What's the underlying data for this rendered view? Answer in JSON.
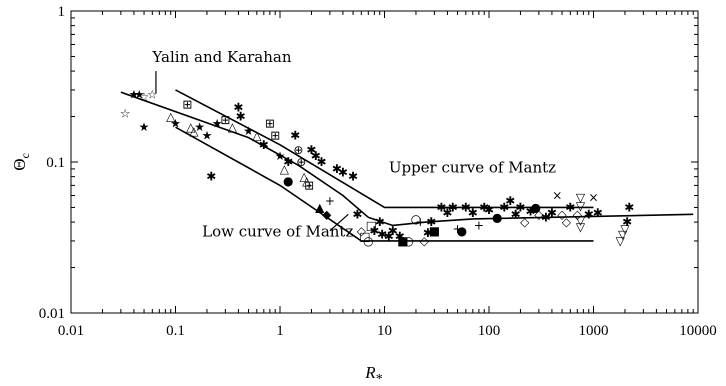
{
  "chart_data": {
    "type": "scatter",
    "title": "",
    "xlabel": "R",
    "xlabel_subscript": "*",
    "ylabel": "Θ",
    "ylabel_subscript": "c",
    "xscale": "log",
    "yscale": "log",
    "xlim": [
      0.01,
      10000
    ],
    "ylim": [
      0.01,
      1
    ],
    "x_ticks": [
      0.01,
      0.1,
      1,
      10,
      100,
      1000,
      10000
    ],
    "x_tick_labels": [
      "0.01",
      "0.1",
      "1",
      "10",
      "100",
      "1000",
      "10000"
    ],
    "y_ticks": [
      0.01,
      0.1,
      1
    ],
    "y_tick_labels": [
      "0.01",
      "0.1",
      "1"
    ],
    "grid": false,
    "lines": [
      {
        "id": "yalin-karahan",
        "x": [
          0.03,
          0.5,
          1.5,
          4,
          7,
          12,
          25,
          70,
          9000
        ],
        "y": [
          0.29,
          0.145,
          0.095,
          0.06,
          0.043,
          0.038,
          0.04,
          0.042,
          0.045
        ]
      },
      {
        "id": "upper-mantz",
        "x": [
          0.1,
          1,
          10,
          1000
        ],
        "y": [
          0.3,
          0.13,
          0.05,
          0.05
        ]
      },
      {
        "id": "low-mantz",
        "x": [
          0.1,
          1,
          6,
          1000
        ],
        "y": [
          0.17,
          0.07,
          0.03,
          0.03
        ]
      }
    ],
    "annotations": [
      {
        "text": "Yalin and Karahan",
        "x": 0.06,
        "y": 0.46,
        "pointer": [
          [
            0.065,
            0.4
          ],
          [
            0.065,
            0.285
          ]
        ]
      },
      {
        "text": "Upper curve of Mantz",
        "x": 11,
        "y": 0.085
      },
      {
        "text": "Low curve of Mantz",
        "x": 0.18,
        "y": 0.032,
        "pointer": [
          [
            3.0,
            0.035
          ],
          [
            4.5,
            0.045
          ]
        ]
      }
    ],
    "points": [
      {
        "x": 0.033,
        "y": 0.21,
        "m": "☆"
      },
      {
        "x": 0.04,
        "y": 0.28,
        "m": "★"
      },
      {
        "x": 0.045,
        "y": 0.28,
        "m": "★"
      },
      {
        "x": 0.05,
        "y": 0.27,
        "m": "☆"
      },
      {
        "x": 0.06,
        "y": 0.28,
        "m": "☆"
      },
      {
        "x": 0.05,
        "y": 0.17,
        "m": "★"
      },
      {
        "x": 0.09,
        "y": 0.2,
        "m": "△"
      },
      {
        "x": 0.1,
        "y": 0.18,
        "m": "★"
      },
      {
        "x": 0.13,
        "y": 0.24,
        "m": "⊞"
      },
      {
        "x": 0.14,
        "y": 0.17,
        "m": "△"
      },
      {
        "x": 0.15,
        "y": 0.16,
        "m": "△"
      },
      {
        "x": 0.17,
        "y": 0.17,
        "m": "★"
      },
      {
        "x": 0.2,
        "y": 0.15,
        "m": "★"
      },
      {
        "x": 0.22,
        "y": 0.08,
        "m": "✱"
      },
      {
        "x": 0.25,
        "y": 0.18,
        "m": "★"
      },
      {
        "x": 0.3,
        "y": 0.19,
        "m": "⊞"
      },
      {
        "x": 0.35,
        "y": 0.17,
        "m": "△"
      },
      {
        "x": 0.4,
        "y": 0.23,
        "m": "✱"
      },
      {
        "x": 0.42,
        "y": 0.2,
        "m": "✱"
      },
      {
        "x": 0.5,
        "y": 0.16,
        "m": "★"
      },
      {
        "x": 0.6,
        "y": 0.15,
        "m": "△"
      },
      {
        "x": 0.7,
        "y": 0.13,
        "m": "✱"
      },
      {
        "x": 0.8,
        "y": 0.18,
        "m": "⊞"
      },
      {
        "x": 0.9,
        "y": 0.15,
        "m": "⊞"
      },
      {
        "x": 1.0,
        "y": 0.11,
        "m": "★"
      },
      {
        "x": 1.1,
        "y": 0.09,
        "m": "△"
      },
      {
        "x": 1.2,
        "y": 0.1,
        "m": "✱"
      },
      {
        "x": 1.4,
        "y": 0.15,
        "m": "✱"
      },
      {
        "x": 1.5,
        "y": 0.12,
        "m": "⊕"
      },
      {
        "x": 1.6,
        "y": 0.1,
        "m": "⊕"
      },
      {
        "x": 1.7,
        "y": 0.08,
        "m": "△"
      },
      {
        "x": 1.8,
        "y": 0.075,
        "m": "△"
      },
      {
        "x": 1.9,
        "y": 0.07,
        "m": "⊞"
      },
      {
        "x": 2.0,
        "y": 0.12,
        "m": "✱"
      },
      {
        "x": 2.2,
        "y": 0.11,
        "m": "✱"
      },
      {
        "x": 2.5,
        "y": 0.1,
        "m": "✱"
      },
      {
        "x": 1.2,
        "y": 0.075,
        "m": "●"
      },
      {
        "x": 2.4,
        "y": 0.05,
        "m": "▲"
      },
      {
        "x": 2.8,
        "y": 0.045,
        "m": "◆"
      },
      {
        "x": 3.0,
        "y": 0.055,
        "m": "+"
      },
      {
        "x": 3.5,
        "y": 0.09,
        "m": "✱"
      },
      {
        "x": 4.0,
        "y": 0.085,
        "m": "✱"
      },
      {
        "x": 5.0,
        "y": 0.08,
        "m": "✱"
      },
      {
        "x": 5.5,
        "y": 0.045,
        "m": "✱"
      },
      {
        "x": 6.0,
        "y": 0.035,
        "m": "◇"
      },
      {
        "x": 6.5,
        "y": 0.032,
        "m": "□"
      },
      {
        "x": 7.0,
        "y": 0.03,
        "m": "○"
      },
      {
        "x": 7.5,
        "y": 0.038,
        "m": "□"
      },
      {
        "x": 8.0,
        "y": 0.035,
        "m": "✱"
      },
      {
        "x": 9.0,
        "y": 0.04,
        "m": "✱"
      },
      {
        "x": 9.5,
        "y": 0.033,
        "m": "✱"
      },
      {
        "x": 11.0,
        "y": 0.032,
        "m": "✱"
      },
      {
        "x": 12.0,
        "y": 0.035,
        "m": "✱"
      },
      {
        "x": 14.0,
        "y": 0.032,
        "m": "✱"
      },
      {
        "x": 15.0,
        "y": 0.03,
        "m": "■"
      },
      {
        "x": 17.0,
        "y": 0.03,
        "m": "○"
      },
      {
        "x": 20.0,
        "y": 0.042,
        "m": "○"
      },
      {
        "x": 22.0,
        "y": 0.04,
        "m": "+"
      },
      {
        "x": 24.0,
        "y": 0.03,
        "m": "◇"
      },
      {
        "x": 26.0,
        "y": 0.034,
        "m": "✱"
      },
      {
        "x": 28.0,
        "y": 0.04,
        "m": "✱"
      },
      {
        "x": 30.0,
        "y": 0.035,
        "m": "■"
      },
      {
        "x": 35.0,
        "y": 0.05,
        "m": "✱"
      },
      {
        "x": 40.0,
        "y": 0.046,
        "m": "✱"
      },
      {
        "x": 45.0,
        "y": 0.05,
        "m": "✱"
      },
      {
        "x": 50.0,
        "y": 0.036,
        "m": "+"
      },
      {
        "x": 55.0,
        "y": 0.035,
        "m": "●"
      },
      {
        "x": 60.0,
        "y": 0.05,
        "m": "✱"
      },
      {
        "x": 70.0,
        "y": 0.046,
        "m": "✱"
      },
      {
        "x": 80.0,
        "y": 0.038,
        "m": "+"
      },
      {
        "x": 90.0,
        "y": 0.05,
        "m": "✱"
      },
      {
        "x": 100.0,
        "y": 0.048,
        "m": "✱"
      },
      {
        "x": 120.0,
        "y": 0.043,
        "m": "●"
      },
      {
        "x": 140.0,
        "y": 0.05,
        "m": "✱"
      },
      {
        "x": 160.0,
        "y": 0.055,
        "m": "✱"
      },
      {
        "x": 180.0,
        "y": 0.045,
        "m": "✱"
      },
      {
        "x": 200.0,
        "y": 0.05,
        "m": "✱"
      },
      {
        "x": 220.0,
        "y": 0.04,
        "m": "◇"
      },
      {
        "x": 250.0,
        "y": 0.047,
        "m": "✱"
      },
      {
        "x": 280.0,
        "y": 0.05,
        "m": "●"
      },
      {
        "x": 300.0,
        "y": 0.045,
        "m": "◇"
      },
      {
        "x": 350.0,
        "y": 0.043,
        "m": "✱"
      },
      {
        "x": 400.0,
        "y": 0.046,
        "m": "✱"
      },
      {
        "x": 450.0,
        "y": 0.06,
        "m": "×"
      },
      {
        "x": 500.0,
        "y": 0.045,
        "m": "◇"
      },
      {
        "x": 550.0,
        "y": 0.04,
        "m": "◇"
      },
      {
        "x": 600.0,
        "y": 0.05,
        "m": "✱"
      },
      {
        "x": 700.0,
        "y": 0.045,
        "m": "◇"
      },
      {
        "x": 750.0,
        "y": 0.058,
        "m": "▽"
      },
      {
        "x": 750.0,
        "y": 0.051,
        "m": "▽"
      },
      {
        "x": 750.0,
        "y": 0.041,
        "m": "▽"
      },
      {
        "x": 750.0,
        "y": 0.037,
        "m": "▽"
      },
      {
        "x": 900.0,
        "y": 0.045,
        "m": "✱"
      },
      {
        "x": 1000.0,
        "y": 0.058,
        "m": "×"
      },
      {
        "x": 1100.0,
        "y": 0.046,
        "m": "✱"
      },
      {
        "x": 1800.0,
        "y": 0.03,
        "m": "▽"
      },
      {
        "x": 1900.0,
        "y": 0.033,
        "m": "▽"
      },
      {
        "x": 2000.0,
        "y": 0.036,
        "m": "▽"
      },
      {
        "x": 2100.0,
        "y": 0.04,
        "m": "✱"
      },
      {
        "x": 2200.0,
        "y": 0.05,
        "m": "✱"
      }
    ]
  }
}
